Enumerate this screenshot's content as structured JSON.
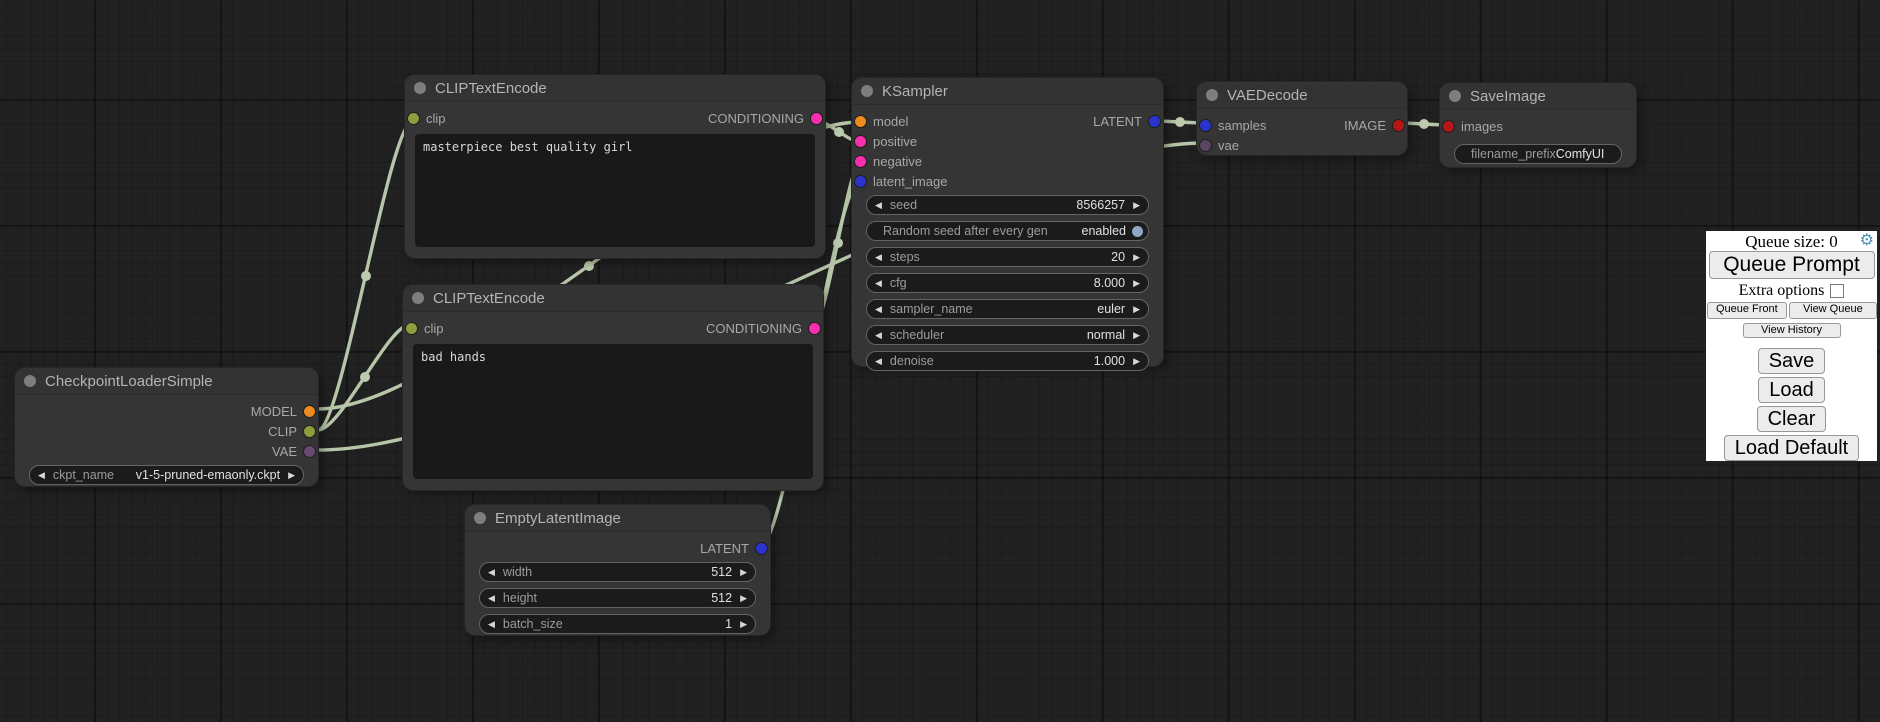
{
  "nodes": {
    "checkpoint": {
      "title": "CheckpointLoaderSimple",
      "outputs": [
        {
          "label": "MODEL",
          "color": "#ee8b20"
        },
        {
          "label": "CLIP",
          "color": "#8f9e3c"
        },
        {
          "label": "VAE",
          "color": "#684a72"
        }
      ],
      "widgets": [
        {
          "kind": "combo",
          "label": "ckpt_name",
          "value": "v1-5-pruned-emaonly.ckpt"
        }
      ]
    },
    "clip1": {
      "title": "CLIPTextEncode",
      "inputs": [
        {
          "label": "clip",
          "color": "#8f9e3c"
        }
      ],
      "outputs": [
        {
          "label": "CONDITIONING",
          "color": "#f72fae"
        }
      ],
      "text": "masterpiece best quality girl"
    },
    "clip2": {
      "title": "CLIPTextEncode",
      "inputs": [
        {
          "label": "clip",
          "color": "#8f9e3c"
        }
      ],
      "outputs": [
        {
          "label": "CONDITIONING",
          "color": "#f72fae"
        }
      ],
      "text": "bad hands"
    },
    "ksampler": {
      "title": "KSampler",
      "inputs": [
        {
          "label": "model",
          "color": "#ee8b20"
        },
        {
          "label": "positive",
          "color": "#f72fae"
        },
        {
          "label": "negative",
          "color": "#f72fae"
        },
        {
          "label": "latent_image",
          "color": "#2a33cc"
        }
      ],
      "outputs": [
        {
          "label": "LATENT",
          "color": "#2a33cc"
        }
      ],
      "widgets": [
        {
          "kind": "number",
          "label": "seed",
          "value": "8566257"
        },
        {
          "kind": "toggle",
          "label": "Random seed after every gen",
          "value": "enabled"
        },
        {
          "kind": "number",
          "label": "steps",
          "value": "20"
        },
        {
          "kind": "number",
          "label": "cfg",
          "value": "8.000"
        },
        {
          "kind": "combo",
          "label": "sampler_name",
          "value": "euler"
        },
        {
          "kind": "combo",
          "label": "scheduler",
          "value": "normal"
        },
        {
          "kind": "number",
          "label": "denoise",
          "value": "1.000"
        }
      ]
    },
    "vaedecode": {
      "title": "VAEDecode",
      "inputs": [
        {
          "label": "samples",
          "color": "#2a33cc"
        },
        {
          "label": "vae",
          "color": "#5a4663"
        }
      ],
      "outputs": [
        {
          "label": "IMAGE",
          "color": "#b51717"
        }
      ],
      "widgets": []
    },
    "saveimage": {
      "title": "SaveImage",
      "inputs": [
        {
          "label": "images",
          "color": "#b51717"
        }
      ],
      "outputs": [],
      "widgets": [
        {
          "kind": "text",
          "label": "filename_prefix",
          "value": "ComfyUI"
        }
      ]
    },
    "emptylatent": {
      "title": "EmptyLatentImage",
      "inputs": [],
      "outputs": [
        {
          "label": "LATENT",
          "color": "#2a33cc"
        }
      ],
      "widgets": [
        {
          "kind": "number",
          "label": "width",
          "value": "512"
        },
        {
          "kind": "number",
          "label": "height",
          "value": "512"
        },
        {
          "kind": "number",
          "label": "batch_size",
          "value": "1"
        }
      ]
    }
  },
  "links": [
    {
      "from": "CheckpointLoaderSimple.MODEL",
      "to": "KSampler.model"
    },
    {
      "from": "CheckpointLoaderSimple.CLIP",
      "to": "CLIPTextEncode(positive).clip"
    },
    {
      "from": "CheckpointLoaderSimple.CLIP",
      "to": "CLIPTextEncode(negative).clip"
    },
    {
      "from": "CheckpointLoaderSimple.VAE",
      "to": "VAEDecode.vae"
    },
    {
      "from": "CLIPTextEncode(positive).CONDITIONING",
      "to": "KSampler.positive"
    },
    {
      "from": "CLIPTextEncode(negative).CONDITIONING",
      "to": "KSampler.negative"
    },
    {
      "from": "EmptyLatentImage.LATENT",
      "to": "KSampler.latent_image"
    },
    {
      "from": "KSampler.LATENT",
      "to": "VAEDecode.samples"
    },
    {
      "from": "VAEDecode.IMAGE",
      "to": "SaveImage.images"
    }
  ],
  "queue_panel": {
    "queue_size": "Queue size: 0",
    "gear_icon": "⚙",
    "queue_prompt": "Queue Prompt",
    "extra_options": "Extra options",
    "queue_front": "Queue Front",
    "view_queue": "View Queue",
    "view_history": "View History",
    "save": "Save",
    "load": "Load",
    "clear": "Clear",
    "load_default": "Load Default"
  },
  "colors": {
    "wire": "#b7c6a9",
    "canvas_bg": "#212121",
    "node_body": "#353535",
    "node_title": "#333333",
    "gear": "#4f93b8"
  }
}
